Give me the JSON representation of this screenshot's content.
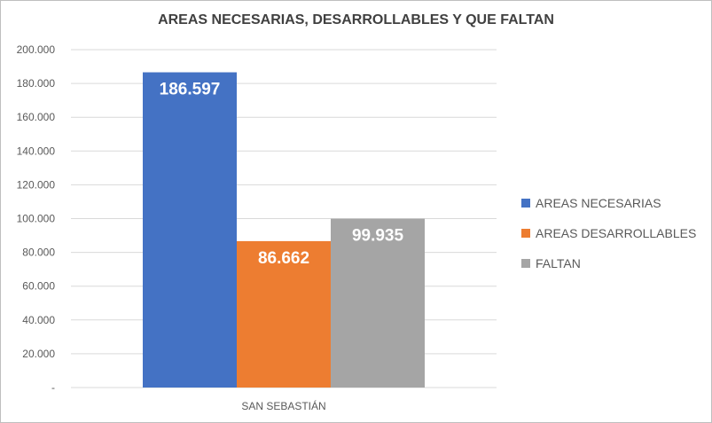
{
  "chart_data": {
    "type": "bar",
    "title": "AREAS NECESARIAS, DESARROLLABLES Y QUE FALTAN",
    "categories": [
      "SAN SEBASTIÁN"
    ],
    "series": [
      {
        "name": "AREAS NECESARIAS",
        "values": [
          186597
        ],
        "label": "186.597",
        "color": "#4472C4"
      },
      {
        "name": "AREAS DESARROLLABLES",
        "values": [
          86662
        ],
        "label": "86.662",
        "color": "#ED7D31"
      },
      {
        "name": "FALTAN",
        "values": [
          99935
        ],
        "label": "99.935",
        "color": "#A5A5A5"
      }
    ],
    "ylim": [
      0,
      200000
    ],
    "yticks": [
      {
        "value": 0,
        "label": "-"
      },
      {
        "value": 20000,
        "label": "20.000"
      },
      {
        "value": 40000,
        "label": "40.000"
      },
      {
        "value": 60000,
        "label": "60.000"
      },
      {
        "value": 80000,
        "label": "80.000"
      },
      {
        "value": 100000,
        "label": "100.000"
      },
      {
        "value": 120000,
        "label": "120.000"
      },
      {
        "value": 140000,
        "label": "140.000"
      },
      {
        "value": 160000,
        "label": "160.000"
      },
      {
        "value": 180000,
        "label": "180.000"
      },
      {
        "value": 200000,
        "label": "200.000"
      }
    ],
    "grid": true,
    "legend_position": "right"
  }
}
